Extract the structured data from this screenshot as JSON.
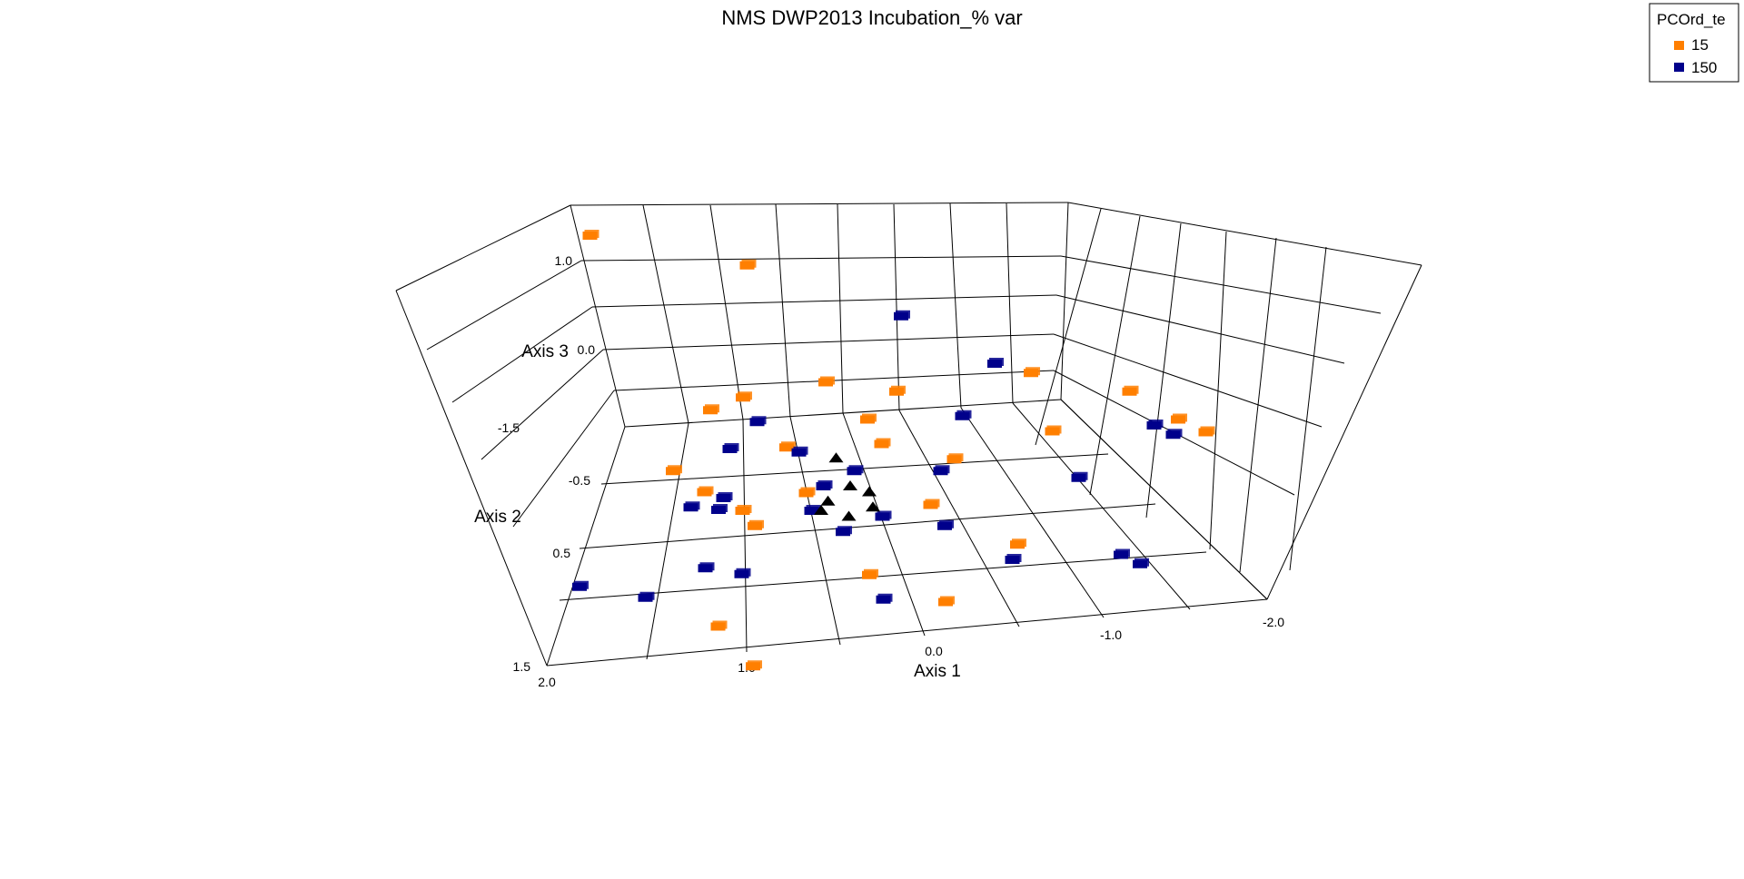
{
  "chart_data": {
    "type": "scatter",
    "projection": "3d",
    "title": "NMS DWP2013 Incubation_% var",
    "legend": {
      "title": "PCOrd_te",
      "placement": "top-right",
      "entries": [
        {
          "label": "15",
          "color": "#ff7f00"
        },
        {
          "label": "150",
          "color": "#00008b"
        }
      ]
    },
    "axes": {
      "x": {
        "label": "Axis 1",
        "range": [
          -2.0,
          2.0
        ],
        "ticks": [
          "2.0",
          "1.0",
          "0.0",
          "-1.0",
          "-2.0"
        ]
      },
      "y": {
        "label": "Axis 2",
        "range": [
          -1.5,
          1.5
        ],
        "ticks": [
          "-1.5",
          "-0.5",
          "0.5",
          "1.5"
        ]
      },
      "z": {
        "label": "Axis 3",
        "range": [
          -1.0,
          1.5
        ],
        "ticks": [
          "1.0",
          "0.0"
        ]
      }
    },
    "grid": true,
    "series": [
      {
        "name": "15",
        "color": "#ff7f00",
        "points": [
          {
            "x": 1.55,
            "y": -1.45,
            "z": 1.3
          },
          {
            "x": 0.65,
            "y": -1.4,
            "z": 0.95
          },
          {
            "x": 1.3,
            "y": -0.35,
            "z": -0.25
          },
          {
            "x": 1.0,
            "y": -0.75,
            "z": -0.05
          },
          {
            "x": 1.15,
            "y": -0.2,
            "z": -0.3
          },
          {
            "x": 0.95,
            "y": -0.1,
            "z": -0.4
          },
          {
            "x": 0.9,
            "y": 0.0,
            "z": -0.45
          },
          {
            "x": 0.8,
            "y": -0.8,
            "z": 0.05
          },
          {
            "x": 0.55,
            "y": -0.25,
            "z": -0.4
          },
          {
            "x": 0.6,
            "y": -0.55,
            "z": -0.25
          },
          {
            "x": 0.3,
            "y": -0.9,
            "z": 0.1
          },
          {
            "x": 0.3,
            "y": 0.3,
            "z": -0.65
          },
          {
            "x": 0.1,
            "y": -0.7,
            "z": -0.1
          },
          {
            "x": 0.05,
            "y": -0.55,
            "z": -0.2
          },
          {
            "x": -0.1,
            "y": -0.85,
            "z": 0.05
          },
          {
            "x": -0.15,
            "y": -0.15,
            "z": -0.4
          },
          {
            "x": -0.35,
            "y": -0.45,
            "z": -0.25
          },
          {
            "x": -0.9,
            "y": -0.95,
            "z": 0.15
          },
          {
            "x": -0.6,
            "y": 0.1,
            "z": -0.55
          },
          {
            "x": -0.95,
            "y": -0.6,
            "z": -0.1
          },
          {
            "x": -1.45,
            "y": -0.85,
            "z": 0.05
          },
          {
            "x": -1.7,
            "y": -0.7,
            "z": -0.1
          },
          {
            "x": -1.85,
            "y": -0.65,
            "z": -0.2
          },
          {
            "x": 1.25,
            "y": 0.65,
            "z": -0.8
          },
          {
            "x": 1.1,
            "y": 0.9,
            "z": -0.95
          },
          {
            "x": -0.1,
            "y": 0.5,
            "z": -0.7
          }
        ]
      },
      {
        "name": "150",
        "color": "#00008b",
        "points": [
          {
            "x": -0.2,
            "y": -1.2,
            "z": 0.55
          },
          {
            "x": 0.95,
            "y": -0.45,
            "z": -0.1
          },
          {
            "x": 1.05,
            "y": -0.15,
            "z": -0.3
          },
          {
            "x": 1.1,
            "y": -0.05,
            "z": -0.3
          },
          {
            "x": 1.25,
            "y": -0.1,
            "z": -0.35
          },
          {
            "x": 0.75,
            "y": -0.65,
            "z": -0.05
          },
          {
            "x": 0.55,
            "y": -0.45,
            "z": -0.15
          },
          {
            "x": 0.25,
            "y": -0.35,
            "z": -0.25
          },
          {
            "x": 0.45,
            "y": -0.25,
            "z": -0.3
          },
          {
            "x": 0.55,
            "y": -0.1,
            "z": -0.4
          },
          {
            "x": 0.4,
            "y": 0.05,
            "z": -0.45
          },
          {
            "x": 0.15,
            "y": -0.05,
            "z": -0.4
          },
          {
            "x": -0.7,
            "y": -1.0,
            "z": 0.2
          },
          {
            "x": -0.45,
            "y": -0.7,
            "z": -0.05
          },
          {
            "x": -0.25,
            "y": -0.35,
            "z": -0.25
          },
          {
            "x": -0.2,
            "y": 0.0,
            "z": -0.45
          },
          {
            "x": -0.55,
            "y": 0.2,
            "z": -0.6
          },
          {
            "x": -1.05,
            "y": -0.35,
            "z": -0.35
          },
          {
            "x": -1.55,
            "y": -0.65,
            "z": -0.1
          },
          {
            "x": -1.65,
            "y": -0.6,
            "z": -0.15
          },
          {
            "x": -1.2,
            "y": 0.1,
            "z": -0.7
          },
          {
            "x": -1.3,
            "y": 0.15,
            "z": -0.75
          },
          {
            "x": 2.0,
            "y": 0.4,
            "z": -0.65
          },
          {
            "x": 1.65,
            "y": 0.55,
            "z": -0.55
          },
          {
            "x": 1.25,
            "y": 0.3,
            "z": -0.55
          },
          {
            "x": 1.05,
            "y": 0.35,
            "z": -0.55
          },
          {
            "x": 0.25,
            "y": 0.45,
            "z": -0.75
          }
        ]
      },
      {
        "name": "",
        "color": "#000000",
        "points": [
          {
            "x": 0.35,
            "y": -0.4,
            "z": -0.15
          },
          {
            "x": 0.3,
            "y": -0.25,
            "z": -0.3
          },
          {
            "x": 0.45,
            "y": -0.15,
            "z": -0.35
          },
          {
            "x": 0.2,
            "y": -0.2,
            "z": -0.3
          },
          {
            "x": 0.35,
            "y": -0.05,
            "z": -0.4
          },
          {
            "x": 0.2,
            "y": -0.1,
            "z": -0.35
          },
          {
            "x": 0.5,
            "y": -0.1,
            "z": -0.4
          }
        ]
      }
    ]
  }
}
